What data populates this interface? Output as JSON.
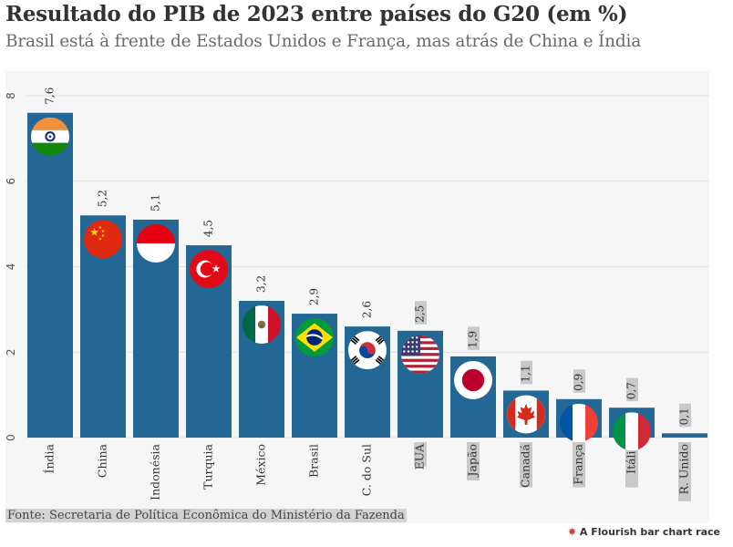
{
  "title": "Resultado do PIB de 2023 entre países do G20 (em %)",
  "subtitle": "Brasil está à frente de Estados Unidos e França, mas atrás de China e Índia",
  "source": "Fonte: Secretaria de Política Econômica do Ministério da Fazenda",
  "credit": "A Flourish bar chart race",
  "chart_data": {
    "type": "bar",
    "title": "Resultado do PIB de 2023 entre países do G20 (em %)",
    "categories": [
      "Índia",
      "China",
      "Indonésia",
      "Turquia",
      "México",
      "Brasil",
      "C. do Sul",
      "EUA",
      "Japão",
      "Canadá",
      "França",
      "Itália",
      "R. Unido"
    ],
    "values": [
      7.6,
      5.2,
      5.1,
      4.5,
      3.2,
      2.9,
      2.6,
      2.5,
      1.9,
      1.1,
      0.9,
      0.7,
      0.1
    ],
    "value_labels": [
      "7,6",
      "5,2",
      "5,1",
      "4,5",
      "3,2",
      "2,9",
      "2,6",
      "2,5",
      "1,9",
      "1,1",
      "0,9",
      "0,7",
      "0,1"
    ],
    "highlighted_labels": [
      "EUA",
      "Japão",
      "Canadá",
      "França",
      "Itália",
      "R. Unido"
    ],
    "flag_icons": [
      "india-flag",
      "china-flag",
      "indonesia-flag",
      "turkey-flag",
      "mexico-flag",
      "brazil-flag",
      "south-korea-flag",
      "usa-flag",
      "japan-flag",
      "canada-flag",
      "france-flag",
      "italy-flag",
      null
    ],
    "ylim": [
      0,
      8
    ],
    "yticks": [
      0,
      2,
      4,
      6,
      8
    ],
    "grid": true,
    "bar_color": "#236894",
    "highlight_color": "#c9c9c9"
  }
}
